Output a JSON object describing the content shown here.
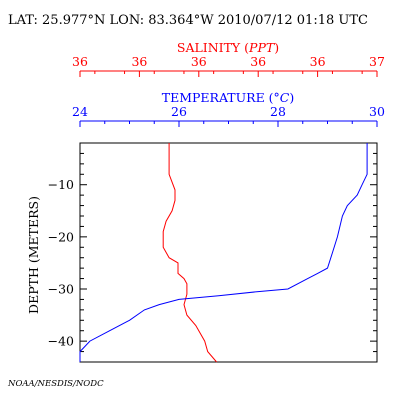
{
  "header": {
    "text": "LAT: 25.977°N LON: 83.364°W 2010/07/12 01:18 UTC"
  },
  "footer": {
    "credit": "NOAA/NESDIS/NODC"
  },
  "colors": {
    "salinity": "#ff0000",
    "temperature": "#0000ff",
    "axes": "#000000"
  },
  "chart_data": {
    "type": "line",
    "grid": false,
    "legend": "none",
    "y_axis": {
      "label": "DEPTH (METERS)",
      "range": [
        -44,
        -2
      ],
      "ticks": [
        -10,
        -20,
        -30,
        -40
      ],
      "tick_labels": [
        "−10",
        "−20",
        "−30",
        "−40"
      ]
    },
    "salinity_axis": {
      "label": "SALINITY",
      "unit": "PPT",
      "tick_labels": [
        "36",
        "36",
        "36",
        "36",
        "36",
        "37"
      ]
    },
    "temperature_axis": {
      "label": "TEMPERATURE",
      "unit": "°C",
      "range": [
        24,
        30
      ],
      "ticks": [
        24,
        26,
        28,
        30
      ],
      "tick_labels": [
        "24",
        "26",
        "28",
        "30"
      ]
    },
    "series": [
      {
        "name": "SALINITY",
        "axis": "salinity",
        "comment_units": "plotted on salinity axis scale (36.0 at left edge, 37.0 at right edge)",
        "points": [
          [
            36.3,
            -2
          ],
          [
            36.3,
            -8
          ],
          [
            36.32,
            -11
          ],
          [
            36.32,
            -13
          ],
          [
            36.31,
            -15
          ],
          [
            36.29,
            -17
          ],
          [
            36.28,
            -19
          ],
          [
            36.28,
            -22
          ],
          [
            36.3,
            -24
          ],
          [
            36.33,
            -25
          ],
          [
            36.33,
            -27
          ],
          [
            36.35,
            -28
          ],
          [
            36.36,
            -29
          ],
          [
            36.36,
            -31
          ],
          [
            36.35,
            -33
          ],
          [
            36.36,
            -35
          ],
          [
            36.39,
            -37
          ],
          [
            36.42,
            -40
          ],
          [
            36.43,
            -42
          ],
          [
            36.46,
            -44
          ]
        ]
      },
      {
        "name": "TEMPERATURE",
        "axis": "temperature",
        "points": [
          [
            29.8,
            -2
          ],
          [
            29.8,
            -8
          ],
          [
            29.7,
            -10
          ],
          [
            29.6,
            -12
          ],
          [
            29.4,
            -14
          ],
          [
            29.3,
            -16
          ],
          [
            29.2,
            -20
          ],
          [
            29.1,
            -23
          ],
          [
            29.0,
            -26
          ],
          [
            28.8,
            -27
          ],
          [
            28.6,
            -28
          ],
          [
            28.2,
            -30
          ],
          [
            27.6,
            -30.5
          ],
          [
            26.8,
            -31.3
          ],
          [
            26.0,
            -32
          ],
          [
            25.6,
            -33
          ],
          [
            25.3,
            -34
          ],
          [
            25.0,
            -36
          ],
          [
            24.6,
            -38
          ],
          [
            24.2,
            -40
          ],
          [
            23.7,
            -42
          ],
          [
            23.2,
            -44
          ]
        ]
      }
    ]
  }
}
